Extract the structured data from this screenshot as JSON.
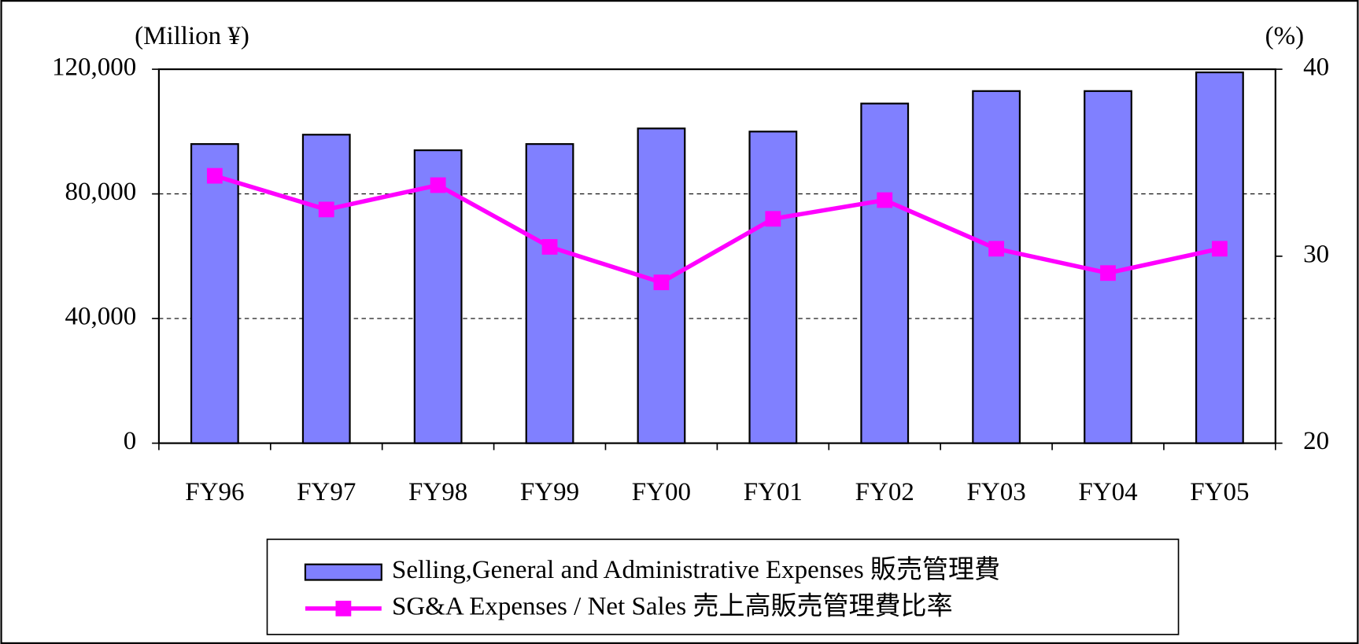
{
  "chart_data": {
    "type": "bar",
    "y_axis_label": "(Million ¥)",
    "y2_axis_label": "(%)",
    "categories": [
      "FY96",
      "FY97",
      "FY98",
      "FY99",
      "FY00",
      "FY01",
      "FY02",
      "FY03",
      "FY04",
      "FY05"
    ],
    "series": [
      {
        "name": "Selling,General and Administrative Expenses 販売管理費",
        "type": "bar",
        "color": "#8080ff",
        "values": [
          96000,
          99000,
          94000,
          96000,
          101000,
          100000,
          109000,
          113000,
          113000,
          119000
        ]
      },
      {
        "name": "SG&A Expenses / Net Sales 売上高販売管理費比率",
        "type": "line",
        "color": "#ff00ff",
        "axis": "y2",
        "values": [
          34.3,
          32.5,
          33.8,
          30.5,
          28.6,
          32.0,
          33.0,
          30.4,
          29.1,
          30.4
        ]
      }
    ],
    "ylim": [
      0,
      120000
    ],
    "yticks": [
      0,
      {
        "value": 40000,
        "label": "40,000"
      },
      {
        "value": 80000,
        "label": "80,000"
      },
      {
        "value": 120000,
        "label": "120,000"
      }
    ],
    "y2lim": [
      20,
      40
    ],
    "y2ticks": [
      20,
      30,
      40
    ],
    "grid": true,
    "legend": "bottom"
  }
}
